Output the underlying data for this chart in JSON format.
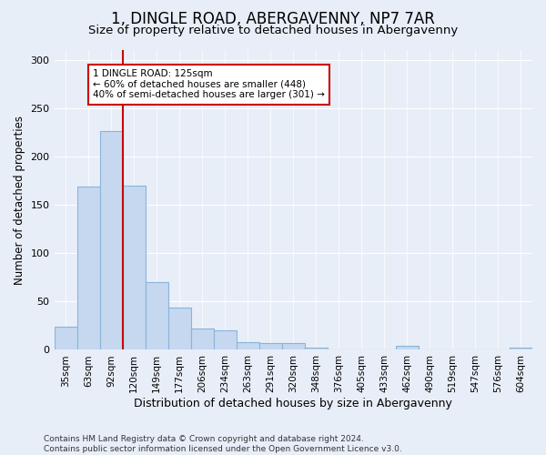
{
  "title": "1, DINGLE ROAD, ABERGAVENNY, NP7 7AR",
  "subtitle": "Size of property relative to detached houses in Abergavenny",
  "xlabel": "Distribution of detached houses by size in Abergavenny",
  "ylabel": "Number of detached properties",
  "categories": [
    "35sqm",
    "63sqm",
    "92sqm",
    "120sqm",
    "149sqm",
    "177sqm",
    "206sqm",
    "234sqm",
    "263sqm",
    "291sqm",
    "320sqm",
    "348sqm",
    "376sqm",
    "405sqm",
    "433sqm",
    "462sqm",
    "490sqm",
    "519sqm",
    "547sqm",
    "576sqm",
    "604sqm"
  ],
  "values": [
    24,
    169,
    226,
    170,
    70,
    44,
    22,
    20,
    8,
    7,
    7,
    2,
    0,
    0,
    0,
    4,
    0,
    0,
    0,
    0,
    2
  ],
  "bar_color": "#c5d8f0",
  "bar_edge_color": "#8ab4d8",
  "vline_color": "#cc0000",
  "annotation_text": "1 DINGLE ROAD: 125sqm\n← 60% of detached houses are smaller (448)\n40% of semi-detached houses are larger (301) →",
  "annotation_box_color": "#ffffff",
  "annotation_box_edge_color": "#cc0000",
  "ylim": [
    0,
    310
  ],
  "yticks": [
    0,
    50,
    100,
    150,
    200,
    250,
    300
  ],
  "bg_color": "#e8eef8",
  "plot_bg_color": "#e8eef8",
  "footer": "Contains HM Land Registry data © Crown copyright and database right 2024.\nContains public sector information licensed under the Open Government Licence v3.0.",
  "title_fontsize": 12,
  "subtitle_fontsize": 9.5,
  "xlabel_fontsize": 9,
  "ylabel_fontsize": 8.5,
  "footer_fontsize": 6.5,
  "tick_fontsize": 8,
  "xtick_fontsize": 7.5
}
